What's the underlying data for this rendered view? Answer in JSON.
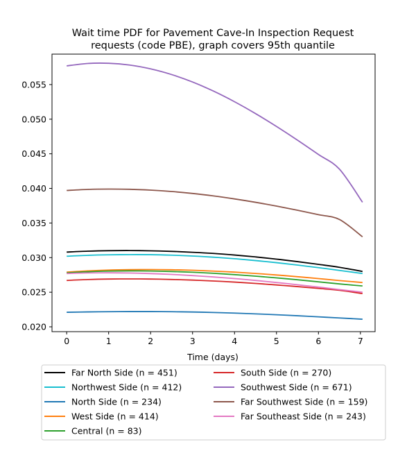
{
  "chart_data": {
    "type": "line",
    "title_line1": "Wait time PDF for Pavement Cave-In Inspection Request",
    "title_line2": "requests (code PBE), graph covers 95th quantile",
    "xlabel": "Time (days)",
    "ylabel": "",
    "xlim": [
      -0.35,
      7.35
    ],
    "ylim": [
      0.0193,
      0.0594
    ],
    "x_ticks": [
      0,
      1,
      2,
      3,
      4,
      5,
      6,
      7
    ],
    "y_ticks": [
      0.02,
      0.025,
      0.03,
      0.035,
      0.04,
      0.045,
      0.05,
      0.055
    ],
    "y_tick_labels": [
      "0.020",
      "0.025",
      "0.030",
      "0.035",
      "0.040",
      "0.045",
      "0.050",
      "0.055"
    ],
    "grid": false,
    "legend_position": "below",
    "x": [
      0,
      0.5,
      1,
      1.5,
      2,
      2.5,
      3,
      3.5,
      4,
      4.5,
      5,
      5.5,
      6,
      6.5,
      7.05
    ],
    "series": [
      {
        "name": "Far North Side (n = 451)",
        "color": "#000000",
        "values": [
          0.0308,
          0.03093,
          0.031,
          0.03102,
          0.03098,
          0.0309,
          0.03077,
          0.0306,
          0.03037,
          0.0301,
          0.02978,
          0.02942,
          0.02902,
          0.0286,
          0.028
        ]
      },
      {
        "name": "Northwest Side (n = 412)",
        "color": "#17becf",
        "values": [
          0.0302,
          0.03033,
          0.0304,
          0.03043,
          0.03042,
          0.03035,
          0.03023,
          0.03006,
          0.02984,
          0.02957,
          0.02927,
          0.02892,
          0.02855,
          0.02815,
          0.0277
        ]
      },
      {
        "name": "North Side (n = 234)",
        "color": "#1f77b4",
        "values": [
          0.0221,
          0.02215,
          0.02218,
          0.0222,
          0.0222,
          0.02218,
          0.02214,
          0.02207,
          0.02198,
          0.02187,
          0.02174,
          0.0216,
          0.02144,
          0.02128,
          0.0211
        ]
      },
      {
        "name": "West Side (n = 414)",
        "color": "#ff7f0e",
        "values": [
          0.0279,
          0.02808,
          0.0282,
          0.02826,
          0.02827,
          0.02824,
          0.02817,
          0.02805,
          0.0279,
          0.02771,
          0.02749,
          0.02724,
          0.02697,
          0.02668,
          0.0264
        ]
      },
      {
        "name": "Central (n = 83)",
        "color": "#2ca02c",
        "values": [
          0.0278,
          0.02796,
          0.02805,
          0.02808,
          0.02806,
          0.02799,
          0.02788,
          0.02773,
          0.02754,
          0.02732,
          0.02707,
          0.0268,
          0.0265,
          0.0262,
          0.0259
        ]
      },
      {
        "name": "South Side (n = 270)",
        "color": "#d62728",
        "values": [
          0.0267,
          0.02683,
          0.0269,
          0.02692,
          0.0269,
          0.02684,
          0.02675,
          0.02662,
          0.02646,
          0.02627,
          0.02605,
          0.02581,
          0.02555,
          0.02528,
          0.0248
        ]
      },
      {
        "name": "Southwest Side (n = 671)",
        "color": "#9467bd",
        "values": [
          0.0577,
          0.05805,
          0.05808,
          0.05782,
          0.05727,
          0.05645,
          0.05537,
          0.05405,
          0.05252,
          0.05081,
          0.04895,
          0.04697,
          0.0449,
          0.04278,
          0.038
        ]
      },
      {
        "name": "Far Southwest Side (n = 159)",
        "color": "#8c564b",
        "values": [
          0.0397,
          0.03985,
          0.0399,
          0.03987,
          0.03975,
          0.03955,
          0.03927,
          0.03891,
          0.03848,
          0.03799,
          0.03744,
          0.03684,
          0.0362,
          0.03551,
          0.033
        ]
      },
      {
        "name": "Far Southeast Side (n = 243)",
        "color": "#e377c2",
        "values": [
          0.0277,
          0.02778,
          0.0278,
          0.02777,
          0.02769,
          0.02757,
          0.0274,
          0.0272,
          0.02697,
          0.0267,
          0.0264,
          0.02608,
          0.02574,
          0.02538,
          0.025
        ]
      }
    ]
  }
}
